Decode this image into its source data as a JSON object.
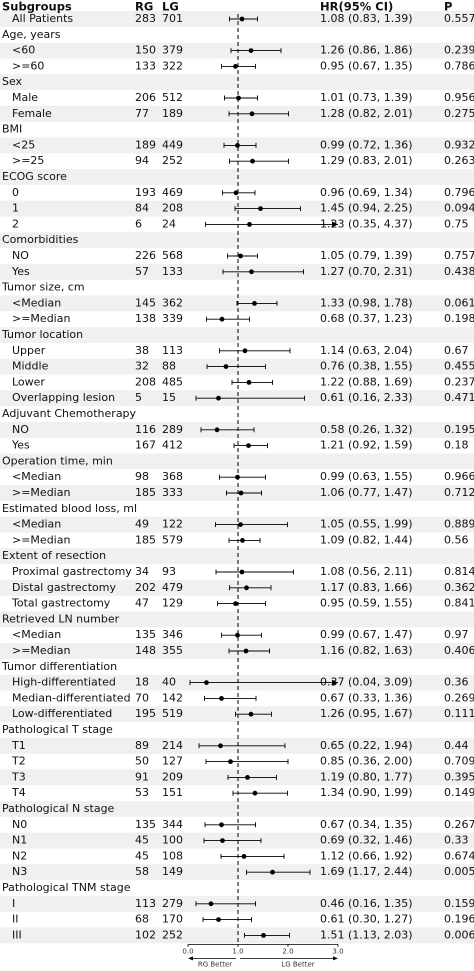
{
  "chart_data": {
    "type": "forest",
    "headers": [
      "Subgroups",
      "RG",
      "LG",
      "HR(95% CI)",
      "P"
    ],
    "xlim": [
      0,
      3
    ],
    "xticks": [
      {
        "value": 0,
        "label": "0.0"
      },
      {
        "value": 1,
        "label": "1.0"
      },
      {
        "value": 2,
        "label": "2.0"
      },
      {
        "value": 3,
        "label": "3.0"
      }
    ],
    "reference_line": 1,
    "left_note": "RG Better",
    "right_note": "LG Better",
    "row_shading": "#eef1ee",
    "rows": [
      {
        "label": "All Patients",
        "rg": 283,
        "lg": 701,
        "hr": 1.08,
        "lo": 0.83,
        "hi": 1.39,
        "hr_label": "1.08 (0.83, 1.39)",
        "p": 0.557
      },
      {
        "label": "Age, years"
      },
      {
        "label": "<60",
        "rg": 150,
        "lg": 379,
        "hr": 1.26,
        "lo": 0.86,
        "hi": 1.86,
        "hr_label": "1.26 (0.86, 1.86)",
        "p": 0.239
      },
      {
        "label": ">=60",
        "rg": 133,
        "lg": 322,
        "hr": 0.95,
        "lo": 0.67,
        "hi": 1.35,
        "hr_label": "0.95 (0.67, 1.35)",
        "p": 0.786
      },
      {
        "label": "Sex"
      },
      {
        "label": "Male",
        "rg": 206,
        "lg": 512,
        "hr": 1.01,
        "lo": 0.73,
        "hi": 1.39,
        "hr_label": "1.01 (0.73, 1.39)",
        "p": 0.956
      },
      {
        "label": "Female",
        "rg": 77,
        "lg": 189,
        "hr": 1.28,
        "lo": 0.82,
        "hi": 2.01,
        "hr_label": "1.28 (0.82, 2.01)",
        "p": 0.275
      },
      {
        "label": "BMI"
      },
      {
        "label": "<25",
        "rg": 189,
        "lg": 449,
        "hr": 0.99,
        "lo": 0.72,
        "hi": 1.36,
        "hr_label": "0.99 (0.72, 1.36)",
        "p": 0.932
      },
      {
        "label": ">=25",
        "rg": 94,
        "lg": 252,
        "hr": 1.29,
        "lo": 0.83,
        "hi": 2.01,
        "hr_label": "1.29 (0.83, 2.01)",
        "p": 0.263
      },
      {
        "label": "ECOG score"
      },
      {
        "label": "0",
        "rg": 193,
        "lg": 469,
        "hr": 0.96,
        "lo": 0.69,
        "hi": 1.34,
        "hr_label": "0.96 (0.69, 1.34)",
        "p": 0.796
      },
      {
        "label": "1",
        "rg": 84,
        "lg": 208,
        "hr": 1.45,
        "lo": 0.94,
        "hi": 2.25,
        "hr_label": "1.45 (0.94, 2.25)",
        "p": 0.094
      },
      {
        "label": "2",
        "rg": 6,
        "lg": 24,
        "hr": 1.23,
        "lo": 0.35,
        "hi": 4.37,
        "hr_label": "1.23 (0.35, 4.37)",
        "p": 0.75
      },
      {
        "label": "Comorbidities"
      },
      {
        "label": "NO",
        "rg": 226,
        "lg": 568,
        "hr": 1.05,
        "lo": 0.79,
        "hi": 1.39,
        "hr_label": "1.05 (0.79, 1.39)",
        "p": 0.757
      },
      {
        "label": "Yes",
        "rg": 57,
        "lg": 133,
        "hr": 1.27,
        "lo": 0.7,
        "hi": 2.31,
        "hr_label": "1.27 (0.70, 2.31)",
        "p": 0.438
      },
      {
        "label": "Tumor size, cm"
      },
      {
        "label": "<Median",
        "rg": 145,
        "lg": 362,
        "hr": 1.33,
        "lo": 0.98,
        "hi": 1.78,
        "hr_label": "1.33 (0.98, 1.78)",
        "p": 0.061
      },
      {
        "label": ">=Median",
        "rg": 138,
        "lg": 339,
        "hr": 0.68,
        "lo": 0.37,
        "hi": 1.23,
        "hr_label": "0.68 (0.37, 1.23)",
        "p": 0.198
      },
      {
        "label": "Tumor location"
      },
      {
        "label": "Upper",
        "rg": 38,
        "lg": 113,
        "hr": 1.14,
        "lo": 0.63,
        "hi": 2.04,
        "hr_label": "1.14 (0.63, 2.04)",
        "p": 0.67
      },
      {
        "label": "Middle",
        "rg": 32,
        "lg": 88,
        "hr": 0.76,
        "lo": 0.38,
        "hi": 1.55,
        "hr_label": "0.76 (0.38, 1.55)",
        "p": 0.455
      },
      {
        "label": "Lower",
        "rg": 208,
        "lg": 485,
        "hr": 1.22,
        "lo": 0.88,
        "hi": 1.69,
        "hr_label": "1.22 (0.88, 1.69)",
        "p": 0.237
      },
      {
        "label": "Overlapping lesion",
        "rg": 5,
        "lg": 15,
        "hr": 0.61,
        "lo": 0.16,
        "hi": 2.33,
        "hr_label": "0.61 (0.16, 2.33)",
        "p": 0.471
      },
      {
        "label": "Adjuvant Chemotherapy"
      },
      {
        "label": "NO",
        "rg": 116,
        "lg": 289,
        "hr": 0.58,
        "lo": 0.26,
        "hi": 1.32,
        "hr_label": "0.58 (0.26, 1.32)",
        "p": 0.195
      },
      {
        "label": "Yes",
        "rg": 167,
        "lg": 412,
        "hr": 1.21,
        "lo": 0.92,
        "hi": 1.59,
        "hr_label": "1.21 (0.92, 1.59)",
        "p": 0.18
      },
      {
        "label": "Operation time, min"
      },
      {
        "label": "<Median",
        "rg": 98,
        "lg": 368,
        "hr": 0.99,
        "lo": 0.63,
        "hi": 1.55,
        "hr_label": "0.99 (0.63, 1.55)",
        "p": 0.966
      },
      {
        "label": ">=Median",
        "rg": 185,
        "lg": 333,
        "hr": 1.06,
        "lo": 0.77,
        "hi": 1.47,
        "hr_label": "1.06 (0.77, 1.47)",
        "p": 0.712
      },
      {
        "label": "Estimated blood loss, ml"
      },
      {
        "label": "<Median",
        "rg": 49,
        "lg": 122,
        "hr": 1.05,
        "lo": 0.55,
        "hi": 1.99,
        "hr_label": "1.05 (0.55, 1.99)",
        "p": 0.889
      },
      {
        "label": ">=Median",
        "rg": 185,
        "lg": 579,
        "hr": 1.09,
        "lo": 0.82,
        "hi": 1.44,
        "hr_label": "1.09 (0.82, 1.44)",
        "p": 0.56
      },
      {
        "label": "Extent of resection"
      },
      {
        "label": "Proximal gastrectomy",
        "rg": 34,
        "lg": 93,
        "hr": 1.08,
        "lo": 0.56,
        "hi": 2.11,
        "hr_label": "1.08 (0.56, 2.11)",
        "p": 0.814
      },
      {
        "label": "Distal gastrectomy",
        "rg": 202,
        "lg": 479,
        "hr": 1.17,
        "lo": 0.83,
        "hi": 1.66,
        "hr_label": "1.17 (0.83, 1.66)",
        "p": 0.362
      },
      {
        "label": "Total gastrectomy",
        "rg": 47,
        "lg": 129,
        "hr": 0.95,
        "lo": 0.59,
        "hi": 1.55,
        "hr_label": "0.95 (0.59, 1.55)",
        "p": 0.841
      },
      {
        "label": "Retrieved LN number"
      },
      {
        "label": "<Median",
        "rg": 135,
        "lg": 346,
        "hr": 0.99,
        "lo": 0.67,
        "hi": 1.47,
        "hr_label": "0.99 (0.67, 1.47)",
        "p": 0.97
      },
      {
        "label": ">=Median",
        "rg": 148,
        "lg": 355,
        "hr": 1.16,
        "lo": 0.82,
        "hi": 1.63,
        "hr_label": "1.16 (0.82, 1.63)",
        "p": 0.406
      },
      {
        "label": "Tumor differentiation"
      },
      {
        "label": "High-differentiated",
        "rg": 18,
        "lg": 40,
        "hr": 0.37,
        "lo": 0.04,
        "hi": 3.09,
        "hr_label": "0.37 (0.04, 3.09)",
        "p": 0.36
      },
      {
        "label": "Median-differentiated",
        "rg": 70,
        "lg": 142,
        "hr": 0.67,
        "lo": 0.33,
        "hi": 1.36,
        "hr_label": "0.67 (0.33, 1.36)",
        "p": 0.269
      },
      {
        "label": "Low-differentiated",
        "rg": 195,
        "lg": 519,
        "hr": 1.26,
        "lo": 0.95,
        "hi": 1.67,
        "hr_label": "1.26 (0.95, 1.67)",
        "p": 0.111
      },
      {
        "label": "Pathological T stage"
      },
      {
        "label": "T1",
        "rg": 89,
        "lg": 214,
        "hr": 0.65,
        "lo": 0.22,
        "hi": 1.94,
        "hr_label": "0.65 (0.22, 1.94)",
        "p": 0.44
      },
      {
        "label": "T2",
        "rg": 50,
        "lg": 127,
        "hr": 0.85,
        "lo": 0.36,
        "hi": 2.0,
        "hr_label": "0.85 (0.36, 2.00)",
        "p": 0.709
      },
      {
        "label": "T3",
        "rg": 91,
        "lg": 209,
        "hr": 1.19,
        "lo": 0.8,
        "hi": 1.77,
        "hr_label": "1.19 (0.80, 1.77)",
        "p": 0.395
      },
      {
        "label": "T4",
        "rg": 53,
        "lg": 151,
        "hr": 1.34,
        "lo": 0.9,
        "hi": 1.99,
        "hr_label": "1.34 (0.90, 1.99)",
        "p": 0.149
      },
      {
        "label": "Pathological N stage"
      },
      {
        "label": "N0",
        "rg": 135,
        "lg": 344,
        "hr": 0.67,
        "lo": 0.34,
        "hi": 1.35,
        "hr_label": "0.67 (0.34, 1.35)",
        "p": 0.267
      },
      {
        "label": "N1",
        "rg": 45,
        "lg": 100,
        "hr": 0.69,
        "lo": 0.32,
        "hi": 1.46,
        "hr_label": "0.69 (0.32, 1.46)",
        "p": 0.33
      },
      {
        "label": "N2",
        "rg": 45,
        "lg": 108,
        "hr": 1.12,
        "lo": 0.66,
        "hi": 1.92,
        "hr_label": "1.12 (0.66, 1.92)",
        "p": 0.674
      },
      {
        "label": "N3",
        "rg": 58,
        "lg": 149,
        "hr": 1.69,
        "lo": 1.17,
        "hi": 2.44,
        "hr_label": "1.69 (1.17, 2.44)",
        "p": 0.005
      },
      {
        "label": "Pathological TNM stage"
      },
      {
        "label": "I",
        "rg": 113,
        "lg": 279,
        "hr": 0.46,
        "lo": 0.16,
        "hi": 1.35,
        "hr_label": "0.46 (0.16, 1.35)",
        "p": 0.159
      },
      {
        "label": "II",
        "rg": 68,
        "lg": 170,
        "hr": 0.61,
        "lo": 0.3,
        "hi": 1.27,
        "hr_label": "0.61 (0.30, 1.27)",
        "p": 0.196
      },
      {
        "label": "III",
        "rg": 102,
        "lg": 252,
        "hr": 1.51,
        "lo": 1.13,
        "hi": 2.03,
        "hr_label": "1.51 (1.13, 2.03)",
        "p": 0.006
      }
    ]
  }
}
